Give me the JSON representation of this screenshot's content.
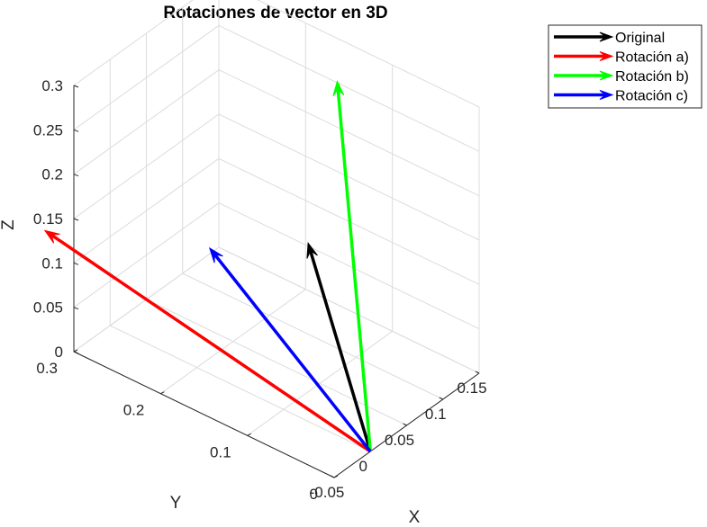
{
  "chart_data": {
    "type": "line",
    "title": "Rotaciones de vector en 3D",
    "xlabel": "X",
    "ylabel": "Y",
    "zlabel": "Z",
    "xlim": [
      -0.05,
      0.15
    ],
    "ylim": [
      0,
      0.3
    ],
    "zlim": [
      0,
      0.3
    ],
    "x_ticks": [
      -0.05,
      0,
      0.05,
      0.1,
      0.15
    ],
    "x_tick_labels": [
      "-0.05",
      "0",
      "0.05",
      "0.1",
      "0.15"
    ],
    "y_ticks": [
      0,
      0.1,
      0.2,
      0.3
    ],
    "y_tick_labels": [
      "0",
      "0.1",
      "0.2",
      "0.3"
    ],
    "z_ticks": [
      0,
      0.05,
      0.1,
      0.15,
      0.2,
      0.25,
      0.3
    ],
    "z_tick_labels": [
      "0",
      "0.05",
      "0.1",
      "0.15",
      "0.2",
      "0.25",
      "0.3"
    ],
    "grid": true,
    "legend_position": "top-right",
    "series": [
      {
        "name": "Original",
        "color": "#000000",
        "from": [
          0,
          0,
          0
        ],
        "to": [
          -0.05,
          0.03,
          0.25
        ]
      },
      {
        "name": "Rotación a)",
        "color": "#ff0000",
        "from": [
          0,
          0,
          0
        ],
        "to": [
          -0.09,
          0.3,
          0.16
        ]
      },
      {
        "name": "Rotación b)",
        "color": "#00ff00",
        "from": [
          0,
          0,
          0
        ],
        "to": [
          0.05,
          0.08,
          0.35
        ]
      },
      {
        "name": "Rotación c)",
        "color": "#0000ff",
        "from": [
          0,
          0,
          0
        ],
        "to": [
          -0.09,
          0.11,
          0.23
        ]
      }
    ]
  }
}
